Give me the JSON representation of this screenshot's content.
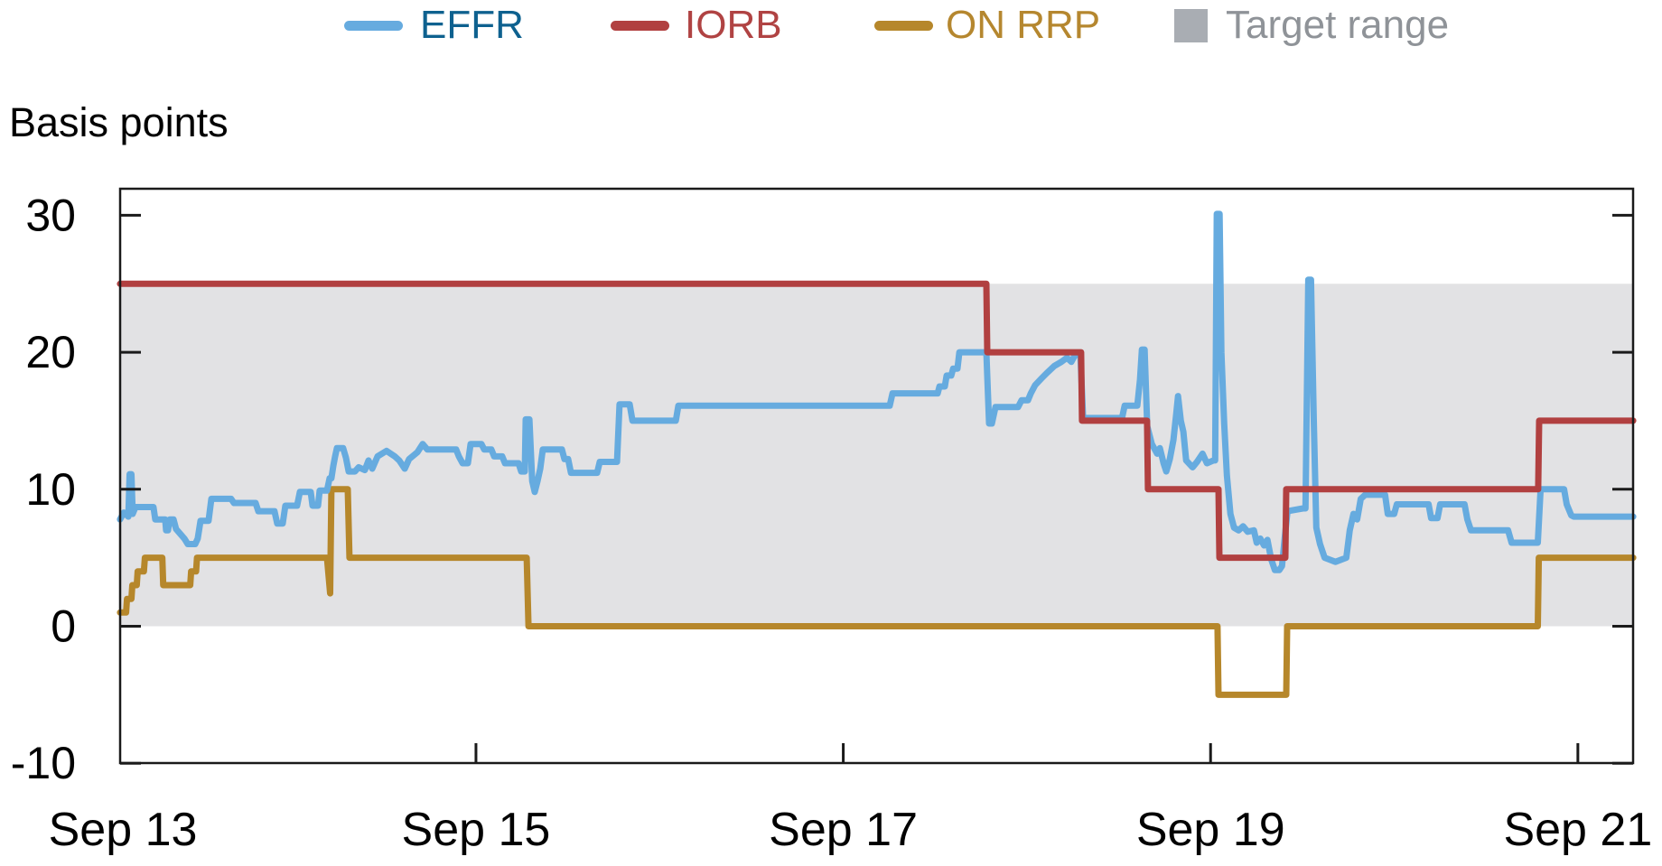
{
  "legend": {
    "items": [
      {
        "label": "EFFR",
        "swatch": "line",
        "color": "#66ABDF",
        "text_color": "#0E618F"
      },
      {
        "label": "IORB",
        "swatch": "line",
        "color": "#B14040",
        "text_color": "#B04343"
      },
      {
        "label": "ON RRP",
        "swatch": "line",
        "color": "#B6872B",
        "text_color": "#B5872F"
      },
      {
        "label": "Target range",
        "swatch": "box",
        "color": "#A9ADB3",
        "text_color": "#8F9398"
      }
    ]
  },
  "ylabel": "Basis points",
  "chart_data": {
    "type": "line",
    "title": "",
    "xlabel": "",
    "x_unit": "days since Sep 13 midnight",
    "ylim": [
      -10,
      31.9
    ],
    "xlim": [
      0.0625,
      8.301
    ],
    "grid": false,
    "legend_position": "top",
    "axis_color": "#1A1A1A",
    "tick_label_color": "#000000",
    "y_ticks": [
      30,
      20,
      10,
      0,
      -10
    ],
    "x_ticks": [
      {
        "t": 0,
        "label": "Sep 13"
      },
      {
        "t": 2,
        "label": "Sep 15"
      },
      {
        "t": 4,
        "label": "Sep 17"
      },
      {
        "t": 6,
        "label": "Sep 19"
      },
      {
        "t": 8,
        "label": "Sep 21"
      }
    ],
    "target_range": {
      "label": "Target range",
      "low": 0,
      "high": 25,
      "color": "#E2E2E4"
    },
    "series": [
      {
        "name": "ON RRP",
        "color": "#B6872B",
        "width": 7,
        "points": [
          [
            0.062,
            1
          ],
          [
            0.095,
            1
          ],
          [
            0.1,
            2
          ],
          [
            0.124,
            2
          ],
          [
            0.129,
            3
          ],
          [
            0.153,
            3
          ],
          [
            0.158,
            4
          ],
          [
            0.192,
            4
          ],
          [
            0.197,
            5
          ],
          [
            0.292,
            5
          ],
          [
            0.297,
            3
          ],
          [
            0.444,
            3
          ],
          [
            0.449,
            4
          ],
          [
            0.476,
            4
          ],
          [
            0.481,
            5
          ],
          [
            1.189,
            5
          ],
          [
            1.206,
            2.4
          ],
          [
            1.213,
            10
          ],
          [
            1.302,
            10
          ],
          [
            1.311,
            5
          ],
          [
            2.276,
            5
          ],
          [
            2.286,
            0
          ],
          [
            6.038,
            0
          ],
          [
            6.043,
            -5
          ],
          [
            6.412,
            -5
          ],
          [
            6.417,
            0
          ],
          [
            7.782,
            0
          ],
          [
            7.787,
            5
          ],
          [
            8.301,
            5
          ]
        ]
      },
      {
        "name": "EFFR",
        "color": "#66ABDF",
        "width": 7,
        "points": [
          [
            0.062,
            7.8
          ],
          [
            0.082,
            8.3
          ],
          [
            0.1,
            8.1
          ],
          [
            0.107,
            8.0
          ],
          [
            0.114,
            11.1
          ],
          [
            0.124,
            11.1
          ],
          [
            0.131,
            8.2
          ],
          [
            0.146,
            8.7
          ],
          [
            0.244,
            8.7
          ],
          [
            0.254,
            7.8
          ],
          [
            0.308,
            7.8
          ],
          [
            0.313,
            7.0
          ],
          [
            0.323,
            7.0
          ],
          [
            0.333,
            7.8
          ],
          [
            0.353,
            7.8
          ],
          [
            0.367,
            7.1
          ],
          [
            0.412,
            6.4
          ],
          [
            0.431,
            6.0
          ],
          [
            0.471,
            6.0
          ],
          [
            0.485,
            6.4
          ],
          [
            0.5,
            7.7
          ],
          [
            0.544,
            7.7
          ],
          [
            0.559,
            9.3
          ],
          [
            0.667,
            9.3
          ],
          [
            0.682,
            9.0
          ],
          [
            0.8,
            9.0
          ],
          [
            0.815,
            8.4
          ],
          [
            0.903,
            8.4
          ],
          [
            0.918,
            7.5
          ],
          [
            0.948,
            7.5
          ],
          [
            0.962,
            8.8
          ],
          [
            1.026,
            8.8
          ],
          [
            1.041,
            9.8
          ],
          [
            1.1,
            9.8
          ],
          [
            1.11,
            8.8
          ],
          [
            1.14,
            8.8
          ],
          [
            1.149,
            9.9
          ],
          [
            1.189,
            9.9
          ],
          [
            1.203,
            10.8
          ],
          [
            1.213,
            10.8
          ],
          [
            1.223,
            11.7
          ],
          [
            1.233,
            12.4
          ],
          [
            1.243,
            13.0
          ],
          [
            1.277,
            13.0
          ],
          [
            1.292,
            12.3
          ],
          [
            1.307,
            11.3
          ],
          [
            1.341,
            11.3
          ],
          [
            1.361,
            11.6
          ],
          [
            1.395,
            11.4
          ],
          [
            1.415,
            12.1
          ],
          [
            1.435,
            11.5
          ],
          [
            1.464,
            12.4
          ],
          [
            1.513,
            12.8
          ],
          [
            1.558,
            12.4
          ],
          [
            1.582,
            12.1
          ],
          [
            1.612,
            11.5
          ],
          [
            1.636,
            12.2
          ],
          [
            1.681,
            12.7
          ],
          [
            1.71,
            13.3
          ],
          [
            1.735,
            12.9
          ],
          [
            1.892,
            12.9
          ],
          [
            1.907,
            12.4
          ],
          [
            1.927,
            11.9
          ],
          [
            1.956,
            11.9
          ],
          [
            1.971,
            13.3
          ],
          [
            2.03,
            13.3
          ],
          [
            2.045,
            12.9
          ],
          [
            2.084,
            12.9
          ],
          [
            2.099,
            12.4
          ],
          [
            2.143,
            12.4
          ],
          [
            2.158,
            11.9
          ],
          [
            2.232,
            11.9
          ],
          [
            2.246,
            11.3
          ],
          [
            2.266,
            11.3
          ],
          [
            2.271,
            15.1
          ],
          [
            2.291,
            15.1
          ],
          [
            2.306,
            10.6
          ],
          [
            2.32,
            9.8
          ],
          [
            2.335,
            10.6
          ],
          [
            2.35,
            11.5
          ],
          [
            2.364,
            12.9
          ],
          [
            2.468,
            12.9
          ],
          [
            2.482,
            12.2
          ],
          [
            2.502,
            12.2
          ],
          [
            2.517,
            11.2
          ],
          [
            2.66,
            11.2
          ],
          [
            2.674,
            12.0
          ],
          [
            2.768,
            12.0
          ],
          [
            2.782,
            16.2
          ],
          [
            2.837,
            16.2
          ],
          [
            2.852,
            15.0
          ],
          [
            3.088,
            15.0
          ],
          [
            3.102,
            16.1
          ],
          [
            4.253,
            16.1
          ],
          [
            4.268,
            17.0
          ],
          [
            4.514,
            17.0
          ],
          [
            4.524,
            17.5
          ],
          [
            4.553,
            17.5
          ],
          [
            4.563,
            18.3
          ],
          [
            4.588,
            18.3
          ],
          [
            4.598,
            18.8
          ],
          [
            4.622,
            18.8
          ],
          [
            4.632,
            20.0
          ],
          [
            4.779,
            20.0
          ],
          [
            4.794,
            14.8
          ],
          [
            4.809,
            14.8
          ],
          [
            4.829,
            16.0
          ],
          [
            4.952,
            16.0
          ],
          [
            4.971,
            16.5
          ],
          [
            5.006,
            16.5
          ],
          [
            5.021,
            17.0
          ],
          [
            5.045,
            17.6
          ],
          [
            5.08,
            18.1
          ],
          [
            5.109,
            18.5
          ],
          [
            5.149,
            19.0
          ],
          [
            5.188,
            19.3
          ],
          [
            5.218,
            19.6
          ],
          [
            5.242,
            19.3
          ],
          [
            5.262,
            19.8
          ],
          [
            5.291,
            19.8
          ],
          [
            5.306,
            15.2
          ],
          [
            5.518,
            15.2
          ],
          [
            5.532,
            16.1
          ],
          [
            5.601,
            16.1
          ],
          [
            5.616,
            18.0
          ],
          [
            5.626,
            20.2
          ],
          [
            5.641,
            20.2
          ],
          [
            5.655,
            14.6
          ],
          [
            5.68,
            13.3
          ],
          [
            5.709,
            12.6
          ],
          [
            5.724,
            13.0
          ],
          [
            5.744,
            11.9
          ],
          [
            5.759,
            11.3
          ],
          [
            5.778,
            12.2
          ],
          [
            5.798,
            13.6
          ],
          [
            5.813,
            15.5
          ],
          [
            5.823,
            16.8
          ],
          [
            5.838,
            15.0
          ],
          [
            5.852,
            14.2
          ],
          [
            5.867,
            12.1
          ],
          [
            5.902,
            11.6
          ],
          [
            5.926,
            12.0
          ],
          [
            5.956,
            12.6
          ],
          [
            5.98,
            11.9
          ],
          [
            6.015,
            12.1
          ],
          [
            6.025,
            12.1
          ],
          [
            6.034,
            30.1
          ],
          [
            6.049,
            30.1
          ],
          [
            6.059,
            20.0
          ],
          [
            6.074,
            14.8
          ],
          [
            6.089,
            11.0
          ],
          [
            6.108,
            8.2
          ],
          [
            6.128,
            7.2
          ],
          [
            6.153,
            7.0
          ],
          [
            6.177,
            7.3
          ],
          [
            6.202,
            6.9
          ],
          [
            6.236,
            7.0
          ],
          [
            6.251,
            6.1
          ],
          [
            6.271,
            6.4
          ],
          [
            6.291,
            5.9
          ],
          [
            6.31,
            6.3
          ],
          [
            6.33,
            4.9
          ],
          [
            6.35,
            4.1
          ],
          [
            6.374,
            4.1
          ],
          [
            6.389,
            4.4
          ],
          [
            6.404,
            6.5
          ],
          [
            6.419,
            8.4
          ],
          [
            6.503,
            8.6
          ],
          [
            6.517,
            8.6
          ],
          [
            6.532,
            25.3
          ],
          [
            6.547,
            25.3
          ],
          [
            6.562,
            15.0
          ],
          [
            6.576,
            7.2
          ],
          [
            6.596,
            6.0
          ],
          [
            6.621,
            5.0
          ],
          [
            6.68,
            4.7
          ],
          [
            6.739,
            5.0
          ],
          [
            6.758,
            7.0
          ],
          [
            6.778,
            8.2
          ],
          [
            6.798,
            7.8
          ],
          [
            6.818,
            9.3
          ],
          [
            6.842,
            9.6
          ],
          [
            6.95,
            9.6
          ],
          [
            6.965,
            8.2
          ],
          [
            7.0,
            8.2
          ],
          [
            7.014,
            8.9
          ],
          [
            7.187,
            8.9
          ],
          [
            7.201,
            7.9
          ],
          [
            7.236,
            7.9
          ],
          [
            7.25,
            8.9
          ],
          [
            7.383,
            8.9
          ],
          [
            7.398,
            7.8
          ],
          [
            7.418,
            7.0
          ],
          [
            7.62,
            7.0
          ],
          [
            7.639,
            6.1
          ],
          [
            7.782,
            6.1
          ],
          [
            7.797,
            10.0
          ],
          [
            7.925,
            10.0
          ],
          [
            7.939,
            8.9
          ],
          [
            7.964,
            8.1
          ],
          [
            7.978,
            8.0
          ],
          [
            8.301,
            8.0
          ]
        ]
      },
      {
        "name": "IORB",
        "color": "#B14040",
        "width": 7,
        "points": [
          [
            0.062,
            25
          ],
          [
            4.779,
            25
          ],
          [
            4.784,
            20
          ],
          [
            5.295,
            20
          ],
          [
            5.3,
            15
          ],
          [
            5.654,
            15
          ],
          [
            5.659,
            10
          ],
          [
            6.043,
            10
          ],
          [
            6.048,
            5
          ],
          [
            6.407,
            5
          ],
          [
            6.412,
            10
          ],
          [
            7.784,
            10
          ],
          [
            7.789,
            15
          ],
          [
            8.301,
            15
          ]
        ]
      }
    ]
  }
}
